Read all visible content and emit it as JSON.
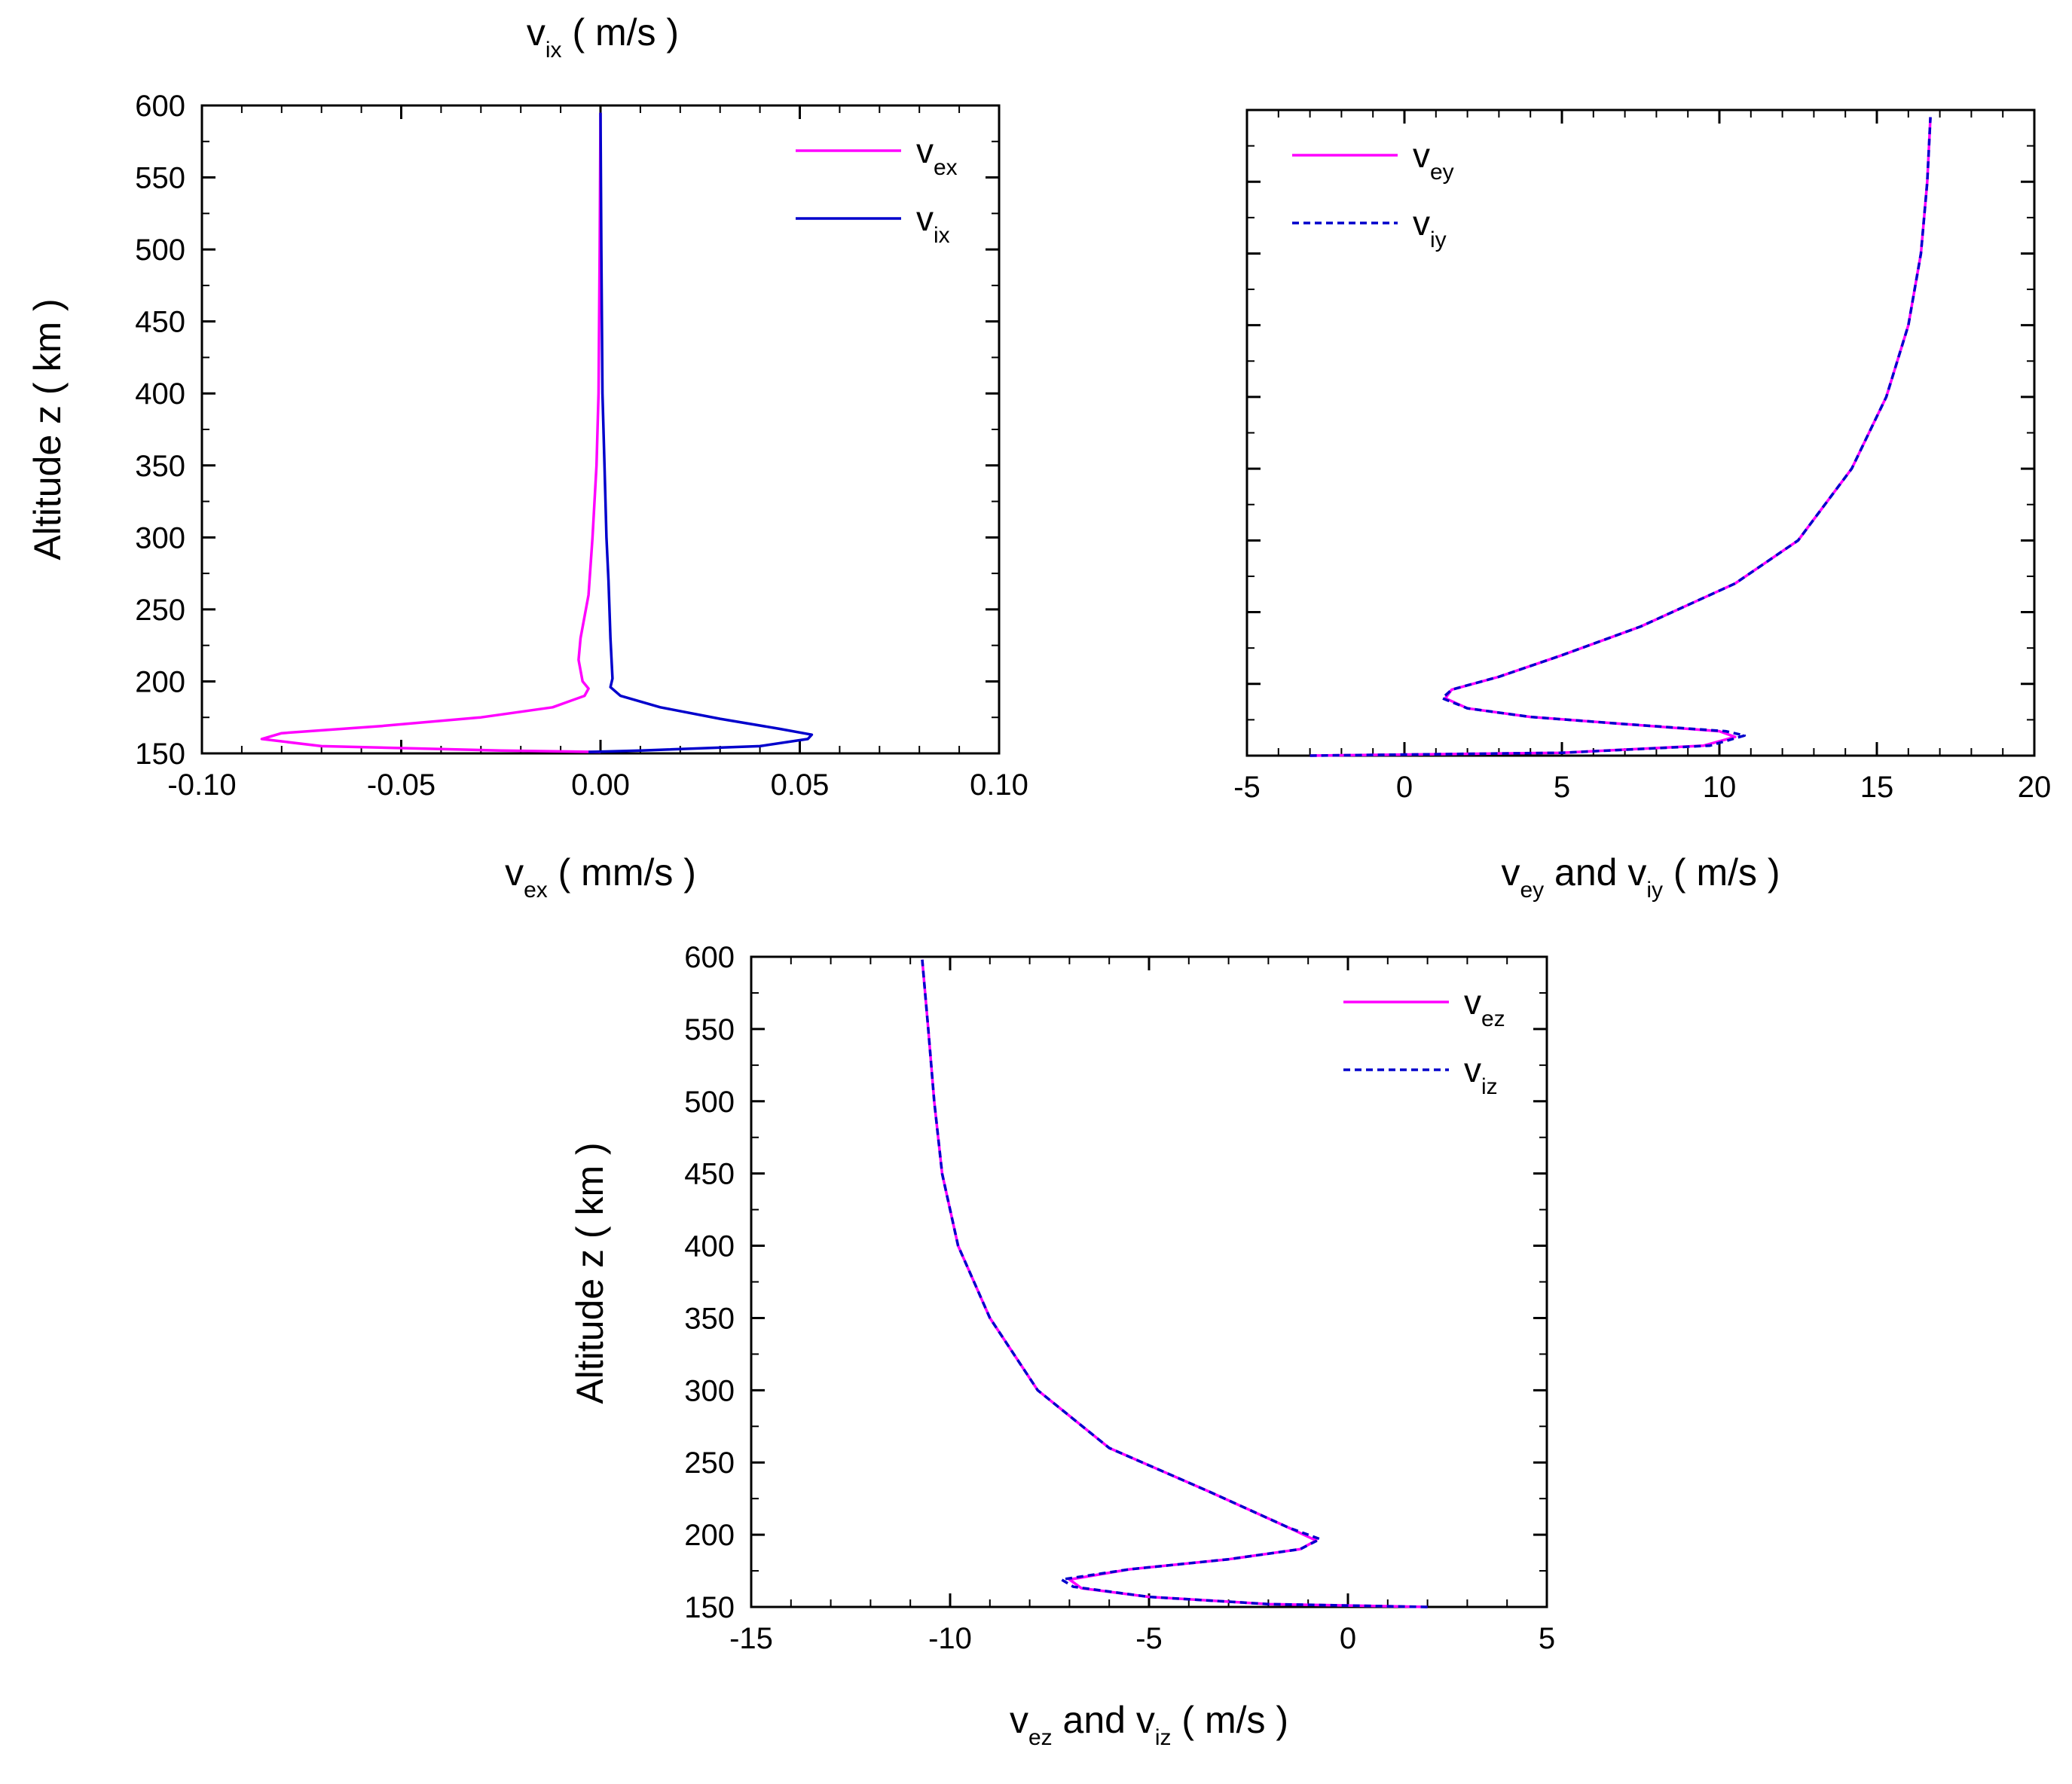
{
  "chart_data": [
    {
      "id": "x",
      "type": "line",
      "xlabel": "v_ex ( mm/s )",
      "xlabel_parts": {
        "base": "v",
        "sub": "ex",
        "unit": "( mm/s )"
      },
      "x2label_parts": {
        "base": "v",
        "sub": "ix",
        "unit": "( m/s )"
      },
      "ylabel": "Altitude z ( km )",
      "xlim": [
        -0.1,
        0.1
      ],
      "ylim": [
        150,
        600
      ],
      "xticks": [
        "-0.10",
        "-0.05",
        "0.00",
        "0.05",
        "0.10"
      ],
      "yticks": [
        "150",
        "200",
        "250",
        "300",
        "350",
        "400",
        "450",
        "500",
        "550",
        "600"
      ],
      "legend_position": "top-right",
      "series": [
        {
          "name": "v_ex",
          "name_base": "v",
          "name_sub": "ex",
          "color": "#ff00ff",
          "dash": "solid",
          "x": [
            0.0,
            -0.025,
            -0.07,
            -0.085,
            -0.08,
            -0.055,
            -0.03,
            -0.012,
            -0.004,
            -0.003,
            -0.0045,
            -0.0055,
            -0.005,
            -0.003,
            -0.002,
            -0.001,
            -0.0005,
            -0.0002,
            0.0
          ],
          "y": [
            151,
            152,
            155,
            160,
            164,
            169,
            175,
            182,
            190,
            195,
            200,
            215,
            230,
            260,
            300,
            350,
            400,
            500,
            595
          ]
        },
        {
          "name": "v_ix",
          "name_base": "v",
          "name_sub": "ix",
          "color": "#0000cc",
          "dash": "solid",
          "x": [
            -0.003,
            0.01,
            0.04,
            0.052,
            0.053,
            0.045,
            0.03,
            0.015,
            0.005,
            0.0025,
            0.003,
            0.0025,
            0.002,
            0.0015,
            0.001,
            0.0005,
            0.0002,
            0.0
          ],
          "y": [
            151,
            152,
            155,
            160,
            163,
            167,
            174,
            182,
            190,
            196,
            202,
            230,
            270,
            300,
            350,
            400,
            500,
            595
          ]
        }
      ]
    },
    {
      "id": "y",
      "type": "line",
      "xlabel": "v_ey and v_iy ( m/s )",
      "xlabel_parts": {
        "base": "v",
        "sub": "ey",
        "mid": "and v",
        "sub2": "iy",
        "unit": "( m/s )"
      },
      "ylabel": "",
      "xlim": [
        -5,
        20
      ],
      "ylim": [
        150,
        600
      ],
      "xticks": [
        "-5",
        "0",
        "5",
        "10",
        "15",
        "20"
      ],
      "yticks": [],
      "legend_position": "top-left",
      "series": [
        {
          "name": "v_ey",
          "name_base": "v",
          "name_sub": "ey",
          "color": "#ff00ff",
          "dash": "solid",
          "x": [
            -3,
            5,
            9.5,
            10.5,
            10,
            7,
            4,
            2,
            1.3,
            1.5,
            3,
            5,
            7.5,
            10.5,
            12.5,
            14.2,
            15.3,
            16.0,
            16.4,
            16.6,
            16.7
          ],
          "y": [
            150,
            152,
            157,
            163,
            167,
            172,
            177,
            183,
            190,
            196,
            205,
            220,
            240,
            270,
            300,
            350,
            400,
            450,
            500,
            550,
            595
          ]
        },
        {
          "name": "v_iy",
          "name_base": "v",
          "name_sub": "iy",
          "color": "#0000cc",
          "dash": "dashed",
          "x": [
            -3,
            5,
            9.7,
            10.8,
            10.2,
            7,
            4,
            2,
            1.2,
            1.5,
            3,
            5,
            7.5,
            10.5,
            12.5,
            14.2,
            15.3,
            16.0,
            16.4,
            16.6,
            16.7
          ],
          "y": [
            150,
            152,
            157,
            164,
            167,
            172,
            177,
            183,
            190,
            196,
            205,
            220,
            240,
            270,
            300,
            350,
            400,
            450,
            500,
            550,
            595
          ]
        }
      ]
    },
    {
      "id": "z",
      "type": "line",
      "xlabel": "v_ez and v_iz ( m/s )",
      "xlabel_parts": {
        "base": "v",
        "sub": "ez",
        "mid": "and v",
        "sub2": "iz",
        "unit": "( m/s )"
      },
      "ylabel": "Altitude z ( km )",
      "xlim": [
        -15,
        5
      ],
      "ylim": [
        150,
        600
      ],
      "xticks": [
        "-15",
        "-10",
        "-5",
        "0",
        "5"
      ],
      "yticks": [
        "150",
        "200",
        "250",
        "300",
        "350",
        "400",
        "450",
        "500",
        "550",
        "600"
      ],
      "legend_position": "top-right",
      "series": [
        {
          "name": "v_ez",
          "name_base": "v",
          "name_sub": "ez",
          "color": "#ff00ff",
          "dash": "solid",
          "x": [
            2.0,
            -2.0,
            -5.0,
            -6.7,
            -7.0,
            -5.5,
            -3.0,
            -1.2,
            -0.8,
            -1.5,
            -3.5,
            -6.0,
            -7.8,
            -9.0,
            -9.8,
            -10.2,
            -10.4,
            -10.55,
            -10.7
          ],
          "y": [
            150,
            152,
            157,
            163,
            169,
            176,
            183,
            190,
            196,
            205,
            230,
            260,
            300,
            350,
            400,
            450,
            500,
            550,
            598
          ]
        },
        {
          "name": "v_iz",
          "name_base": "v",
          "name_sub": "iz",
          "color": "#0000cc",
          "dash": "dashed",
          "x": [
            2.0,
            -2.0,
            -5.0,
            -6.9,
            -7.2,
            -5.5,
            -3.0,
            -1.2,
            -0.7,
            -1.5,
            -3.5,
            -6.0,
            -7.8,
            -9.0,
            -9.8,
            -10.2,
            -10.4,
            -10.55,
            -10.7
          ],
          "y": [
            150,
            152,
            157,
            164,
            169,
            176,
            183,
            190,
            197,
            205,
            230,
            260,
            300,
            350,
            400,
            450,
            500,
            550,
            598
          ]
        }
      ]
    }
  ]
}
